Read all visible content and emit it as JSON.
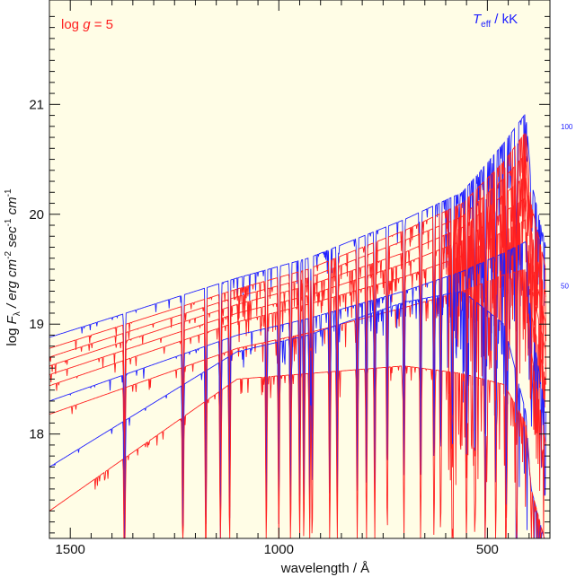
{
  "chart_data": {
    "type": "line",
    "title": "",
    "annotation_left": {
      "prefix": "log",
      "var": "g",
      "rest": " = 5",
      "color": "#ff2020"
    },
    "annotation_right": {
      "var": "T",
      "sub": "eff",
      "rest": " / kK",
      "color": "#2020ff"
    },
    "xlabel": "wavelength / Å",
    "ylabel": {
      "pre": "log ",
      "F": "F",
      "lam": "λ",
      "mid": " / erg cm",
      "e1": "-2",
      "sec": " sec",
      "e2": "-1",
      "cm": " cm",
      "e3": "-1"
    },
    "x_reversed": true,
    "xlim": [
      1550,
      350
    ],
    "ylim": [
      17.05,
      21.95
    ],
    "xticks": [
      1500,
      1000,
      500
    ],
    "xtick_labels": [
      "1500",
      "1000",
      "500"
    ],
    "yticks": [
      18,
      19,
      20,
      21
    ],
    "ytick_labels": [
      "18",
      "19",
      "20",
      "21"
    ],
    "background": "#fffde6",
    "edge_labels": [
      {
        "text": "100",
        "y": 20.8
      },
      {
        "text": "50",
        "y": 19.35
      }
    ],
    "series": [
      {
        "color": "#2020ff",
        "x": [
          1550,
          1100,
          930,
          700,
          560,
          460,
          408,
          395,
          360
        ],
        "y": [
          18.88,
          19.42,
          19.6,
          19.95,
          20.2,
          20.65,
          20.92,
          20.3,
          19.7
        ]
      },
      {
        "color": "#ff2020",
        "y": [
          18.78,
          19.32,
          19.5,
          19.85,
          20.1,
          20.48,
          20.75,
          20.1,
          19.5
        ]
      },
      {
        "color": "#ff2020",
        "y": [
          18.7,
          19.25,
          19.42,
          19.76,
          19.98,
          20.33,
          20.55,
          19.85,
          19.25
        ]
      },
      {
        "color": "#ff2020",
        "y": [
          18.62,
          19.18,
          19.35,
          19.65,
          19.88,
          20.18,
          20.35,
          19.6,
          19.0
        ]
      },
      {
        "color": "#ff2020",
        "y": [
          18.54,
          19.1,
          19.26,
          19.55,
          19.76,
          20.02,
          20.15,
          19.35,
          18.75
        ]
      },
      {
        "color": "#ff2020",
        "y": [
          18.44,
          19.02,
          19.18,
          19.43,
          19.62,
          19.85,
          19.95,
          19.1,
          18.5
        ]
      },
      {
        "color": "#2020ff",
        "y": [
          18.3,
          18.9,
          19.05,
          19.3,
          19.48,
          19.65,
          19.75,
          19.0,
          18.2
        ]
      },
      {
        "color": "#ff2020",
        "y": [
          18.18,
          18.78,
          18.92,
          19.15,
          19.3,
          19.45,
          19.5,
          18.75,
          17.9
        ]
      },
      {
        "color": "#2020ff",
        "y": [
          17.7,
          18.75,
          18.9,
          19.2,
          19.3,
          19.0,
          18.2,
          17.5,
          17.0
        ]
      },
      {
        "color": "#ff2020",
        "y": [
          17.3,
          18.5,
          18.55,
          18.62,
          18.55,
          18.45,
          18.1,
          17.5,
          17.0
        ]
      }
    ]
  }
}
